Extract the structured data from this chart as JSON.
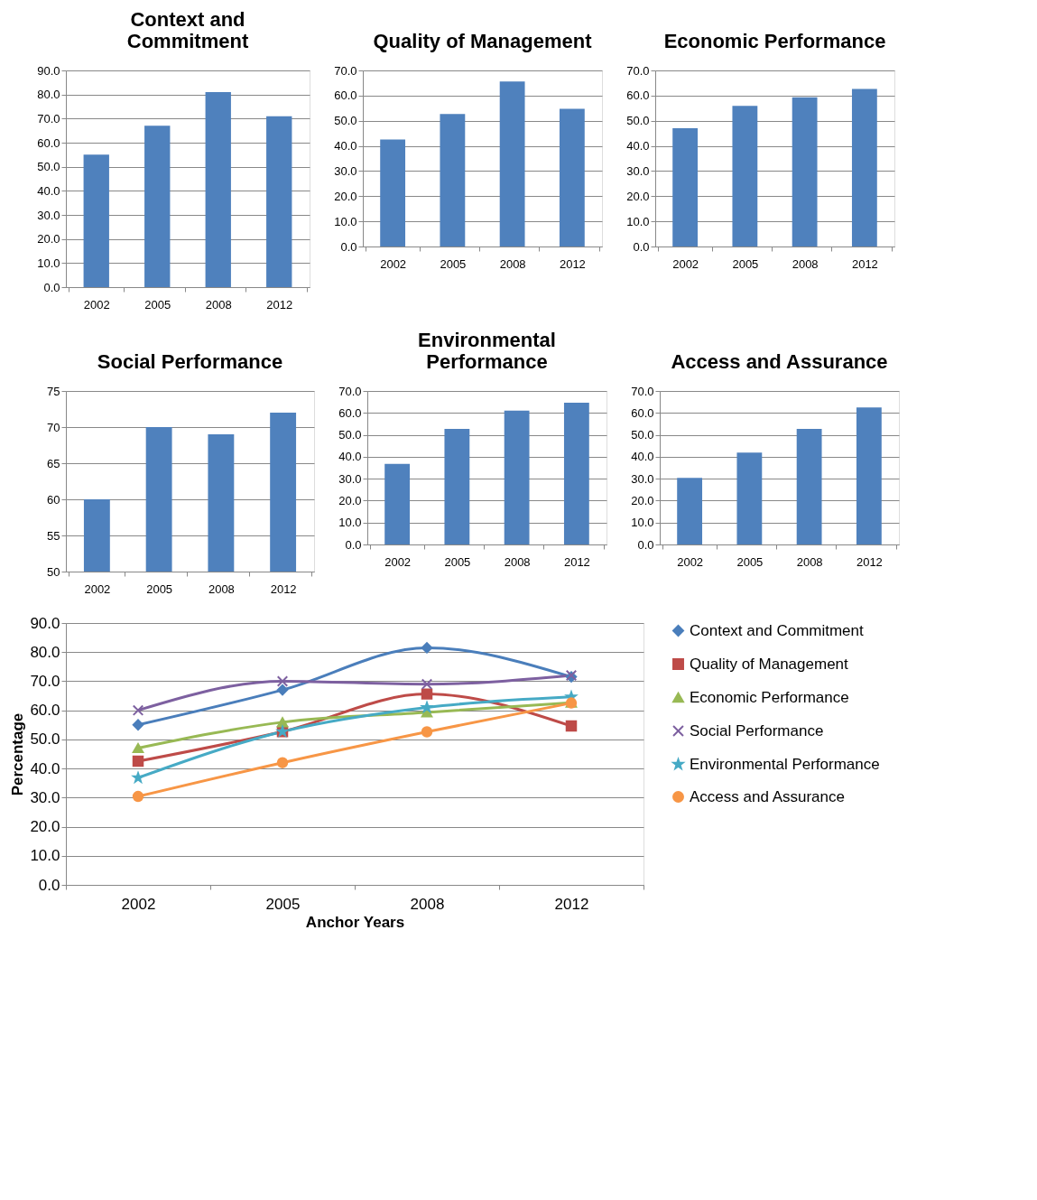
{
  "chart_data": [
    {
      "type": "bar",
      "title": "Context and Commitment",
      "categories": [
        "2002",
        "2005",
        "2008",
        "2012"
      ],
      "values": [
        55.0,
        67.0,
        81.0,
        71.0
      ],
      "color": "#4f81bd",
      "ylim": [
        0,
        90
      ],
      "yticks": [
        {
          "value": 0,
          "label": "0.0"
        },
        {
          "value": 10,
          "label": "10.0"
        },
        {
          "value": 20,
          "label": "20.0"
        },
        {
          "value": 30,
          "label": "30.0"
        },
        {
          "value": 40,
          "label": "40.0"
        },
        {
          "value": 50,
          "label": "50.0"
        },
        {
          "value": 60,
          "label": "60.0"
        },
        {
          "value": 70,
          "label": "70.0"
        },
        {
          "value": 80,
          "label": "80.0"
        },
        {
          "value": 90,
          "label": "90.0"
        }
      ],
      "grid": "y"
    },
    {
      "type": "bar",
      "title": "Quality of Management",
      "categories": [
        "2002",
        "2005",
        "2008",
        "2012"
      ],
      "values": [
        42.5,
        52.7,
        65.6,
        54.7
      ],
      "color": "#4f81bd",
      "ylim": [
        0,
        70
      ],
      "yticks": [
        {
          "value": 0,
          "label": "0.0"
        },
        {
          "value": 10,
          "label": "10.0"
        },
        {
          "value": 20,
          "label": "20.0"
        },
        {
          "value": 30,
          "label": "30.0"
        },
        {
          "value": 40,
          "label": "40.0"
        },
        {
          "value": 50,
          "label": "50.0"
        },
        {
          "value": 60,
          "label": "60.0"
        },
        {
          "value": 70,
          "label": "70.0"
        }
      ],
      "grid": "y"
    },
    {
      "type": "bar",
      "title": "Economic Performance",
      "categories": [
        "2002",
        "2005",
        "2008",
        "2012"
      ],
      "values": [
        47.0,
        55.9,
        59.3,
        62.6
      ],
      "color": "#4f81bd",
      "ylim": [
        0,
        70
      ],
      "yticks": [
        {
          "value": 0,
          "label": "0.0"
        },
        {
          "value": 10,
          "label": "10.0"
        },
        {
          "value": 20,
          "label": "20.0"
        },
        {
          "value": 30,
          "label": "30.0"
        },
        {
          "value": 40,
          "label": "40.0"
        },
        {
          "value": 50,
          "label": "50.0"
        },
        {
          "value": 60,
          "label": "60.0"
        },
        {
          "value": 70,
          "label": "70.0"
        }
      ],
      "grid": "y"
    },
    {
      "type": "bar",
      "title": "Social Performance",
      "categories": [
        "2002",
        "2005",
        "2008",
        "2012"
      ],
      "values": [
        60.0,
        70.0,
        69.0,
        72.0
      ],
      "color": "#4f81bd",
      "ylim": [
        50,
        75
      ],
      "yticks": [
        50,
        55,
        60,
        65,
        70,
        75
      ],
      "grid": "y"
    },
    {
      "type": "bar",
      "title": "Environmental Performance",
      "categories": [
        "2002",
        "2005",
        "2008",
        "2012"
      ],
      "values": [
        36.8,
        52.7,
        61.0,
        64.6
      ],
      "color": "#4f81bd",
      "ylim": [
        0,
        70
      ],
      "yticks": [
        {
          "value": 0,
          "label": "0.0"
        },
        {
          "value": 10,
          "label": "10.0"
        },
        {
          "value": 20,
          "label": "20.0"
        },
        {
          "value": 30,
          "label": "30.0"
        },
        {
          "value": 40,
          "label": "40.0"
        },
        {
          "value": 50,
          "label": "50.0"
        },
        {
          "value": 60,
          "label": "60.0"
        },
        {
          "value": 70,
          "label": "70.0"
        }
      ],
      "grid": "y"
    },
    {
      "type": "bar",
      "title": "Access and Assurance",
      "categories": [
        "2002",
        "2005",
        "2008",
        "2012"
      ],
      "values": [
        30.4,
        41.9,
        52.7,
        62.5
      ],
      "color": "#4f81bd",
      "ylim": [
        0,
        70
      ],
      "yticks": [
        {
          "value": 0,
          "label": "0.0"
        },
        {
          "value": 10,
          "label": "10.0"
        },
        {
          "value": 20,
          "label": "20.0"
        },
        {
          "value": 30,
          "label": "30.0"
        },
        {
          "value": 40,
          "label": "40.0"
        },
        {
          "value": 50,
          "label": "50.0"
        },
        {
          "value": 60,
          "label": "60.0"
        },
        {
          "value": 70,
          "label": "70.0"
        }
      ],
      "grid": "y"
    },
    {
      "type": "line",
      "xlabel": "Anchor Years",
      "ylabel": "Percentage",
      "categories": [
        "2002",
        "2005",
        "2008",
        "2012"
      ],
      "ylim": [
        0,
        90
      ],
      "yticks": [
        {
          "value": 0,
          "label": "0.0"
        },
        {
          "value": 10,
          "label": "10.0"
        },
        {
          "value": 20,
          "label": "20.0"
        },
        {
          "value": 30,
          "label": "30.0"
        },
        {
          "value": 40,
          "label": "40.0"
        },
        {
          "value": 50,
          "label": "50.0"
        },
        {
          "value": 60,
          "label": "60.0"
        },
        {
          "value": 70,
          "label": "70.0"
        },
        {
          "value": 80,
          "label": "80.0"
        },
        {
          "value": 90,
          "label": "90.0"
        }
      ],
      "grid": "y",
      "legend": "right",
      "line_style": "solid",
      "series": [
        {
          "name": "Context and Commitment",
          "color": "#4a7ebb",
          "marker": "diamond",
          "values": [
            55.0,
            67.0,
            81.5,
            71.5
          ]
        },
        {
          "name": "Quality of Management",
          "color": "#be4b48",
          "marker": "square",
          "values": [
            42.5,
            52.7,
            65.6,
            54.6
          ]
        },
        {
          "name": "Economic Performance",
          "color": "#98b954",
          "marker": "triangle",
          "values": [
            47.0,
            55.9,
            59.3,
            62.6
          ]
        },
        {
          "name": "Social Performance",
          "color": "#7d60a0",
          "marker": "cross",
          "values": [
            60.0,
            70.0,
            69.0,
            72.0
          ]
        },
        {
          "name": "Environmental Performance",
          "color": "#46aac5",
          "marker": "star",
          "values": [
            36.8,
            52.7,
            61.0,
            64.6
          ]
        },
        {
          "name": "Access and Assurance",
          "color": "#f79646",
          "marker": "circle",
          "values": [
            30.4,
            42.0,
            52.6,
            62.5
          ]
        }
      ]
    }
  ]
}
